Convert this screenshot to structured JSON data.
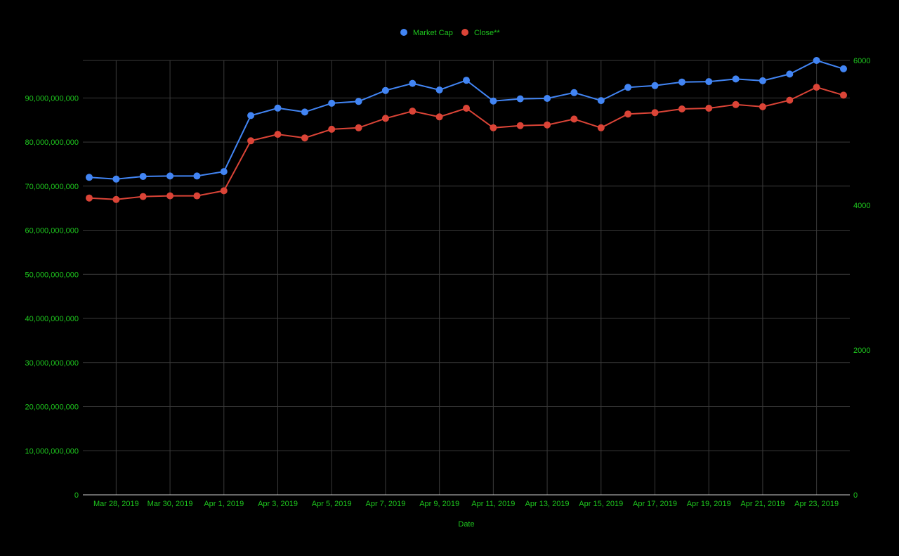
{
  "chart_data": {
    "type": "line",
    "title": "",
    "xlabel": "Date",
    "ylabel_left": "",
    "ylabel_right": "",
    "legend_position": "top-center",
    "grid": true,
    "text_color": "#1ec71e",
    "background": "#000000",
    "x": [
      "2019-03-27",
      "2019-03-28",
      "2019-03-29",
      "2019-03-30",
      "2019-03-31",
      "2019-04-01",
      "2019-04-02",
      "2019-04-03",
      "2019-04-04",
      "2019-04-05",
      "2019-04-06",
      "2019-04-07",
      "2019-04-08",
      "2019-04-09",
      "2019-04-10",
      "2019-04-11",
      "2019-04-12",
      "2019-04-13",
      "2019-04-14",
      "2019-04-15",
      "2019-04-16",
      "2019-04-17",
      "2019-04-18",
      "2019-04-19",
      "2019-04-20",
      "2019-04-21",
      "2019-04-22",
      "2019-04-23",
      "2019-04-24"
    ],
    "x_tick_labels": [
      "Mar 28, 2019",
      "Mar 30, 2019",
      "Apr 1, 2019",
      "Apr 3, 2019",
      "Apr 5, 2019",
      "Apr 7, 2019",
      "Apr 9, 2019",
      "Apr 11, 2019",
      "Apr 13, 2019",
      "Apr 15, 2019",
      "Apr 17, 2019",
      "Apr 19, 2019",
      "Apr 21, 2019",
      "Apr 23, 2019"
    ],
    "x_tick_dates": [
      "2019-03-28",
      "2019-03-30",
      "2019-04-01",
      "2019-04-03",
      "2019-04-05",
      "2019-04-07",
      "2019-04-09",
      "2019-04-11",
      "2019-04-13",
      "2019-04-15",
      "2019-04-17",
      "2019-04-19",
      "2019-04-21",
      "2019-04-23"
    ],
    "y_left": {
      "range": [
        0,
        98500000000
      ],
      "ticks": [
        0,
        10000000000,
        20000000000,
        30000000000,
        40000000000,
        50000000000,
        60000000000,
        70000000000,
        80000000000,
        90000000000
      ],
      "tick_labels": [
        "0",
        "10,000,000,000",
        "20,000,000,000",
        "30,000,000,000",
        "40,000,000,000",
        "50,000,000,000",
        "60,000,000,000",
        "70,000,000,000",
        "80,000,000,000",
        "90,000,000,000"
      ]
    },
    "y_right": {
      "range": [
        0,
        6000
      ],
      "ticks": [
        0,
        2000,
        4000,
        6000
      ],
      "tick_labels": [
        "0",
        "2000",
        "4000",
        "6000"
      ]
    },
    "series": [
      {
        "name": "Market Cap",
        "axis": "left",
        "color": "#4285f4",
        "values": [
          72000000000,
          71600000000,
          72200000000,
          72300000000,
          72300000000,
          73300000000,
          86000000000,
          87700000000,
          86800000000,
          88800000000,
          89200000000,
          91700000000,
          93300000000,
          91800000000,
          94000000000,
          89300000000,
          89800000000,
          89900000000,
          91200000000,
          89400000000,
          92400000000,
          92800000000,
          93600000000,
          93700000000,
          94300000000,
          93900000000,
          95400000000,
          98500000000,
          96600000000
        ]
      },
      {
        "name": "Close**",
        "axis": "right",
        "color": "#db4437",
        "values": [
          4100,
          4080,
          4120,
          4130,
          4130,
          4200,
          4890,
          4980,
          4930,
          5050,
          5070,
          5200,
          5300,
          5220,
          5340,
          5070,
          5100,
          5110,
          5190,
          5070,
          5260,
          5280,
          5330,
          5340,
          5390,
          5360,
          5450,
          5630,
          5520
        ]
      }
    ]
  }
}
